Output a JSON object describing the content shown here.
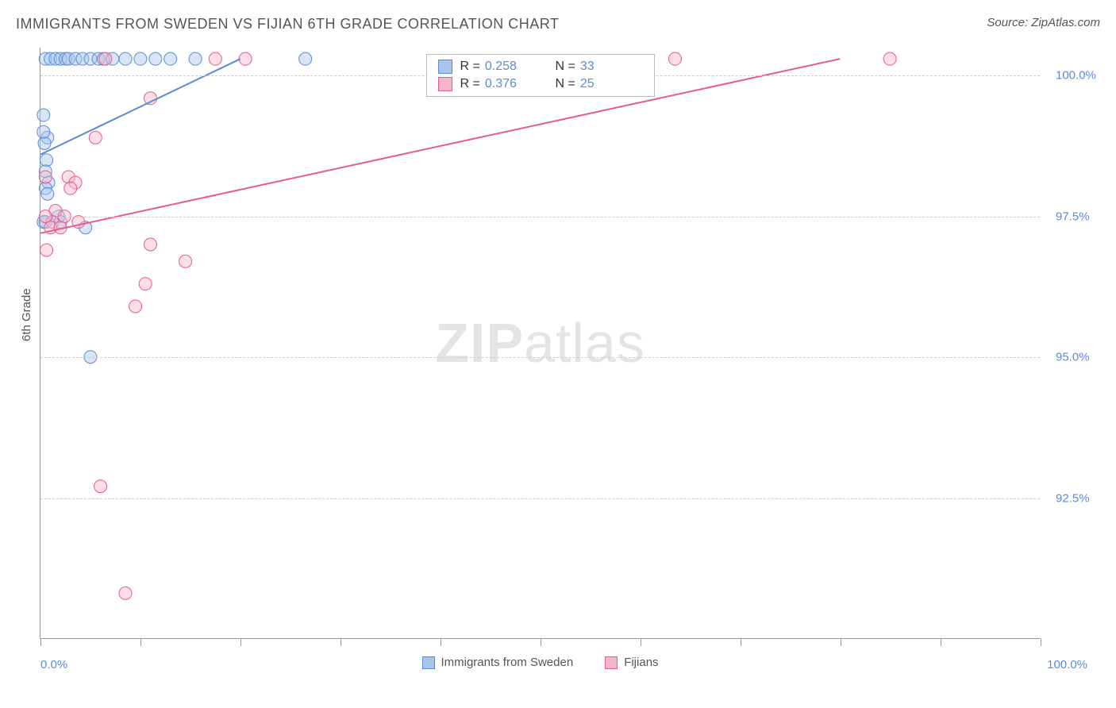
{
  "title": "IMMIGRANTS FROM SWEDEN VS FIJIAN 6TH GRADE CORRELATION CHART",
  "source_label": "Source:",
  "source_value": "ZipAtlas.com",
  "y_axis_label": "6th Grade",
  "watermark_bold": "ZIP",
  "watermark_light": "atlas",
  "chart": {
    "type": "scatter",
    "xlim": [
      0,
      100
    ],
    "ylim": [
      90,
      100.5
    ],
    "x_axis_min_label": "0.0%",
    "x_axis_max_label": "100.0%",
    "y_ticks": [
      {
        "v": 92.5,
        "label": "92.5%"
      },
      {
        "v": 95.0,
        "label": "95.0%"
      },
      {
        "v": 97.5,
        "label": "97.5%"
      },
      {
        "v": 100.0,
        "label": "100.0%"
      }
    ],
    "x_tick_positions": [
      0,
      10,
      20,
      30,
      40,
      50,
      60,
      70,
      80,
      90,
      100
    ],
    "background_color": "#ffffff",
    "grid_color": "#cccccc",
    "axis_color": "#999999",
    "marker_radius": 8,
    "marker_opacity": 0.45,
    "line_width": 2,
    "series": [
      {
        "name": "Immigrants from Sweden",
        "color_stroke": "#5b8bd4",
        "color_fill": "#a8c5ec",
        "R": "0.258",
        "N": "33",
        "trend": {
          "x1": 0,
          "y1": 98.6,
          "x2": 20,
          "y2": 100.3
        },
        "points": [
          [
            0.5,
            100.3
          ],
          [
            1.0,
            100.3
          ],
          [
            1.5,
            100.3
          ],
          [
            2.0,
            100.3
          ],
          [
            2.5,
            100.3
          ],
          [
            2.8,
            100.3
          ],
          [
            3.5,
            100.3
          ],
          [
            4.2,
            100.3
          ],
          [
            5.0,
            100.3
          ],
          [
            5.8,
            100.3
          ],
          [
            6.3,
            100.3
          ],
          [
            7.2,
            100.3
          ],
          [
            8.5,
            100.3
          ],
          [
            10.0,
            100.3
          ],
          [
            11.5,
            100.3
          ],
          [
            13.0,
            100.3
          ],
          [
            15.5,
            100.3
          ],
          [
            26.5,
            100.3
          ],
          [
            0.3,
            99.3
          ],
          [
            0.7,
            98.9
          ],
          [
            0.4,
            98.8
          ],
          [
            0.6,
            98.5
          ],
          [
            0.5,
            98.3
          ],
          [
            0.8,
            98.1
          ],
          [
            0.5,
            98.0
          ],
          [
            0.7,
            97.9
          ],
          [
            1.8,
            97.5
          ],
          [
            0.3,
            97.4
          ],
          [
            2.0,
            97.4
          ],
          [
            0.5,
            97.4
          ],
          [
            4.5,
            97.3
          ],
          [
            5.0,
            95.0
          ],
          [
            0.3,
            99.0
          ]
        ]
      },
      {
        "name": "Fijians",
        "color_stroke": "#e85a8a",
        "color_fill": "#f5b5cc",
        "R": "0.376",
        "N": "25",
        "trend": {
          "x1": 0,
          "y1": 97.2,
          "x2": 80,
          "y2": 100.3
        },
        "points": [
          [
            6.5,
            100.3
          ],
          [
            17.5,
            100.3
          ],
          [
            20.5,
            100.3
          ],
          [
            63.5,
            100.3
          ],
          [
            85.0,
            100.3
          ],
          [
            11.0,
            99.6
          ],
          [
            5.5,
            98.9
          ],
          [
            0.5,
            98.2
          ],
          [
            2.8,
            98.2
          ],
          [
            3.5,
            98.1
          ],
          [
            1.5,
            97.6
          ],
          [
            2.4,
            97.5
          ],
          [
            3.8,
            97.4
          ],
          [
            1.2,
            97.4
          ],
          [
            11.0,
            97.0
          ],
          [
            0.6,
            96.9
          ],
          [
            14.5,
            96.7
          ],
          [
            10.5,
            96.3
          ],
          [
            9.5,
            95.9
          ],
          [
            6.0,
            92.7
          ],
          [
            8.5,
            90.8
          ],
          [
            1.0,
            97.3
          ],
          [
            2.0,
            97.3
          ],
          [
            0.5,
            97.5
          ],
          [
            3.0,
            98.0
          ]
        ]
      }
    ]
  },
  "bottom_legend": [
    {
      "label": "Immigrants from Sweden",
      "stroke": "#5b8bd4",
      "fill": "#a8c5ec"
    },
    {
      "label": "Fijians",
      "stroke": "#e85a8a",
      "fill": "#f5b5cc"
    }
  ],
  "top_legend": {
    "r_label": "R =",
    "n_label": "N ="
  }
}
